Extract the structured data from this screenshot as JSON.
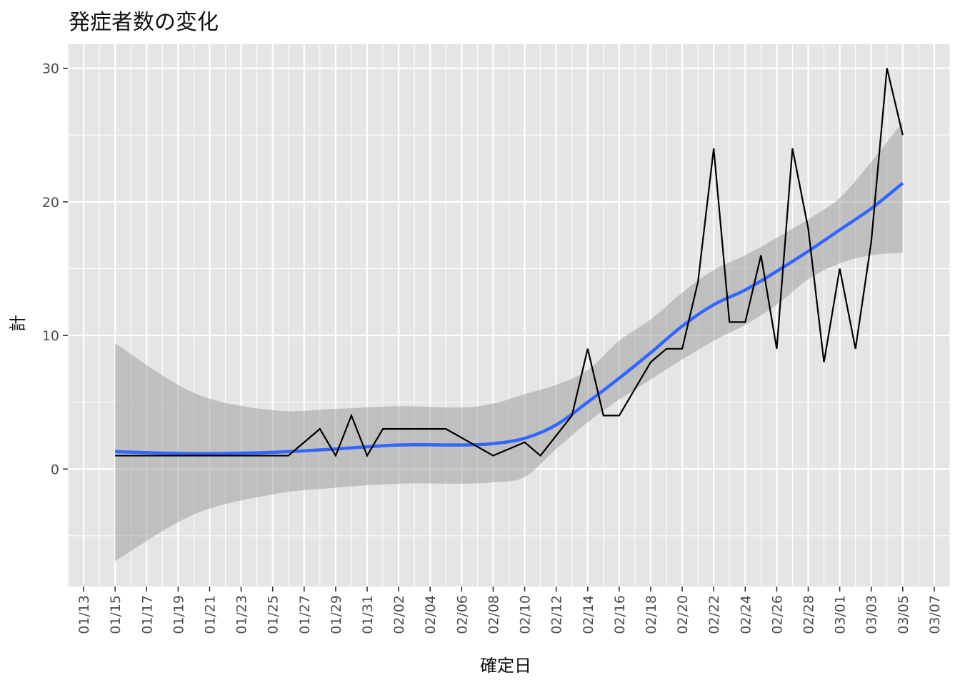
{
  "chart_data": {
    "type": "line",
    "title": "発症者数の変化",
    "xlabel": "確定日",
    "ylabel": "計",
    "x_range": [
      "2020-01-12",
      "2020-03-08"
    ],
    "ylim": [
      -8.8,
      31.8
    ],
    "y_ticks": [
      0,
      10,
      20,
      30
    ],
    "x_tick_labels": [
      "01/13",
      "01/15",
      "01/17",
      "01/19",
      "01/21",
      "01/23",
      "01/25",
      "01/27",
      "01/29",
      "01/31",
      "02/02",
      "02/04",
      "02/06",
      "02/08",
      "02/10",
      "02/12",
      "02/14",
      "02/16",
      "02/18",
      "02/20",
      "02/22",
      "02/24",
      "02/26",
      "02/28",
      "03/01",
      "03/03",
      "03/05",
      "03/07"
    ],
    "tick_dates": [
      "2020-01-13",
      "2020-01-15",
      "2020-01-17",
      "2020-01-19",
      "2020-01-21",
      "2020-01-23",
      "2020-01-25",
      "2020-01-27",
      "2020-01-29",
      "2020-01-31",
      "2020-02-02",
      "2020-02-04",
      "2020-02-06",
      "2020-02-08",
      "2020-02-10",
      "2020-02-12",
      "2020-02-14",
      "2020-02-16",
      "2020-02-18",
      "2020-02-20",
      "2020-02-22",
      "2020-02-24",
      "2020-02-26",
      "2020-02-28",
      "2020-03-01",
      "2020-03-03",
      "2020-03-05",
      "2020-03-07"
    ],
    "grid": true,
    "colors": {
      "panel": "#e5e5e5",
      "grid": "#ffffff",
      "line": "#000000",
      "smooth": "#3366ff",
      "band": "#999999"
    },
    "series": [
      {
        "type": "line",
        "x": [
          "2020-01-15",
          "2020-01-26",
          "2020-01-28",
          "2020-01-29",
          "2020-01-30",
          "2020-01-31",
          "2020-02-01",
          "2020-02-05",
          "2020-02-08",
          "2020-02-10",
          "2020-02-11",
          "2020-02-13",
          "2020-02-14",
          "2020-02-15",
          "2020-02-16",
          "2020-02-18",
          "2020-02-19",
          "2020-02-20",
          "2020-02-21",
          "2020-02-22",
          "2020-02-23",
          "2020-02-24",
          "2020-02-25",
          "2020-02-26",
          "2020-02-27",
          "2020-02-28",
          "2020-02-29",
          "2020-03-01",
          "2020-03-02",
          "2020-03-03",
          "2020-03-04",
          "2020-03-05"
        ],
        "y": [
          1,
          1,
          3,
          1,
          4,
          1,
          3,
          3,
          1,
          2,
          1,
          4,
          9,
          4,
          4,
          8,
          9,
          9,
          14,
          24,
          11,
          11,
          16,
          9,
          24,
          18,
          8,
          15,
          9,
          17,
          30,
          25
        ]
      },
      {
        "type": "smooth",
        "x": [
          "2020-01-15",
          "2020-01-20",
          "2020-01-25",
          "2020-01-29",
          "2020-02-02",
          "2020-02-06",
          "2020-02-08",
          "2020-02-10",
          "2020-02-12",
          "2020-02-14",
          "2020-02-16",
          "2020-02-18",
          "2020-02-20",
          "2020-02-22",
          "2020-02-24",
          "2020-02-26",
          "2020-02-28",
          "2020-03-01",
          "2020-03-03",
          "2020-03-05"
        ],
        "y": [
          1.3,
          1.15,
          1.25,
          1.5,
          1.8,
          1.8,
          1.9,
          2.3,
          3.3,
          5.0,
          6.8,
          8.7,
          10.7,
          12.3,
          13.4,
          14.8,
          16.3,
          17.9,
          19.5,
          21.4
        ],
        "ci_low": [
          -6.9,
          -3.4,
          -1.9,
          -1.4,
          -1.1,
          -1.1,
          -1.0,
          -0.6,
          1.5,
          3.5,
          5.2,
          6.7,
          8.2,
          9.6,
          10.8,
          12.3,
          14.2,
          15.4,
          16.0,
          16.2
        ],
        "ci_high": [
          9.4,
          5.7,
          4.4,
          4.5,
          4.7,
          4.6,
          4.9,
          5.6,
          6.3,
          7.4,
          9.6,
          11.2,
          13.2,
          14.9,
          16.0,
          17.3,
          18.7,
          20.3,
          23.0,
          26.0
        ]
      }
    ]
  }
}
